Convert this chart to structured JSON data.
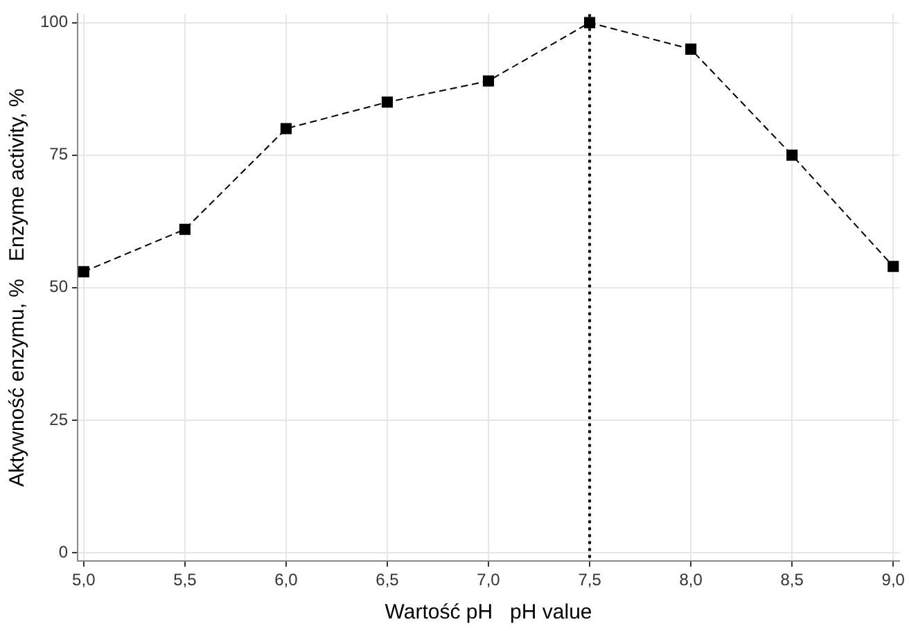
{
  "chart_data": {
    "type": "line",
    "xlabel": "Wartość pH   pH value",
    "ylabel": "Aktywność enzymu, %   Enzyme activity, %",
    "x": [
      5,
      5.5,
      6,
      6.5,
      7,
      7.5,
      8,
      8.5,
      9
    ],
    "series": [
      {
        "color": "#000000",
        "values": [
          53,
          61,
          80,
          85,
          89,
          100,
          95,
          75,
          54
        ]
      }
    ],
    "xlim": [
      4.97,
      9.03
    ],
    "ylim": [
      -1.6,
      101.6
    ],
    "xticks": [
      {
        "value": 5,
        "label": "5,0"
      },
      {
        "value": 5.5,
        "label": "5,5"
      },
      {
        "value": 6,
        "label": "6,0"
      },
      {
        "value": 6.5,
        "label": "6,5"
      },
      {
        "value": 7,
        "label": "7,0"
      },
      {
        "value": 7.5,
        "label": "7,5"
      },
      {
        "value": 8,
        "label": "8,0"
      },
      {
        "value": 8.5,
        "label": "8,5"
      },
      {
        "value": 9,
        "label": "9,0"
      }
    ],
    "yticks": [
      0,
      25,
      50,
      75,
      100
    ],
    "ref_lines": [
      {
        "axis": "x",
        "value": 7.5,
        "color": "#000000",
        "line_style": "dotted"
      }
    ],
    "grid": true,
    "legend": false,
    "marker": "square",
    "line_style": "dashed"
  }
}
